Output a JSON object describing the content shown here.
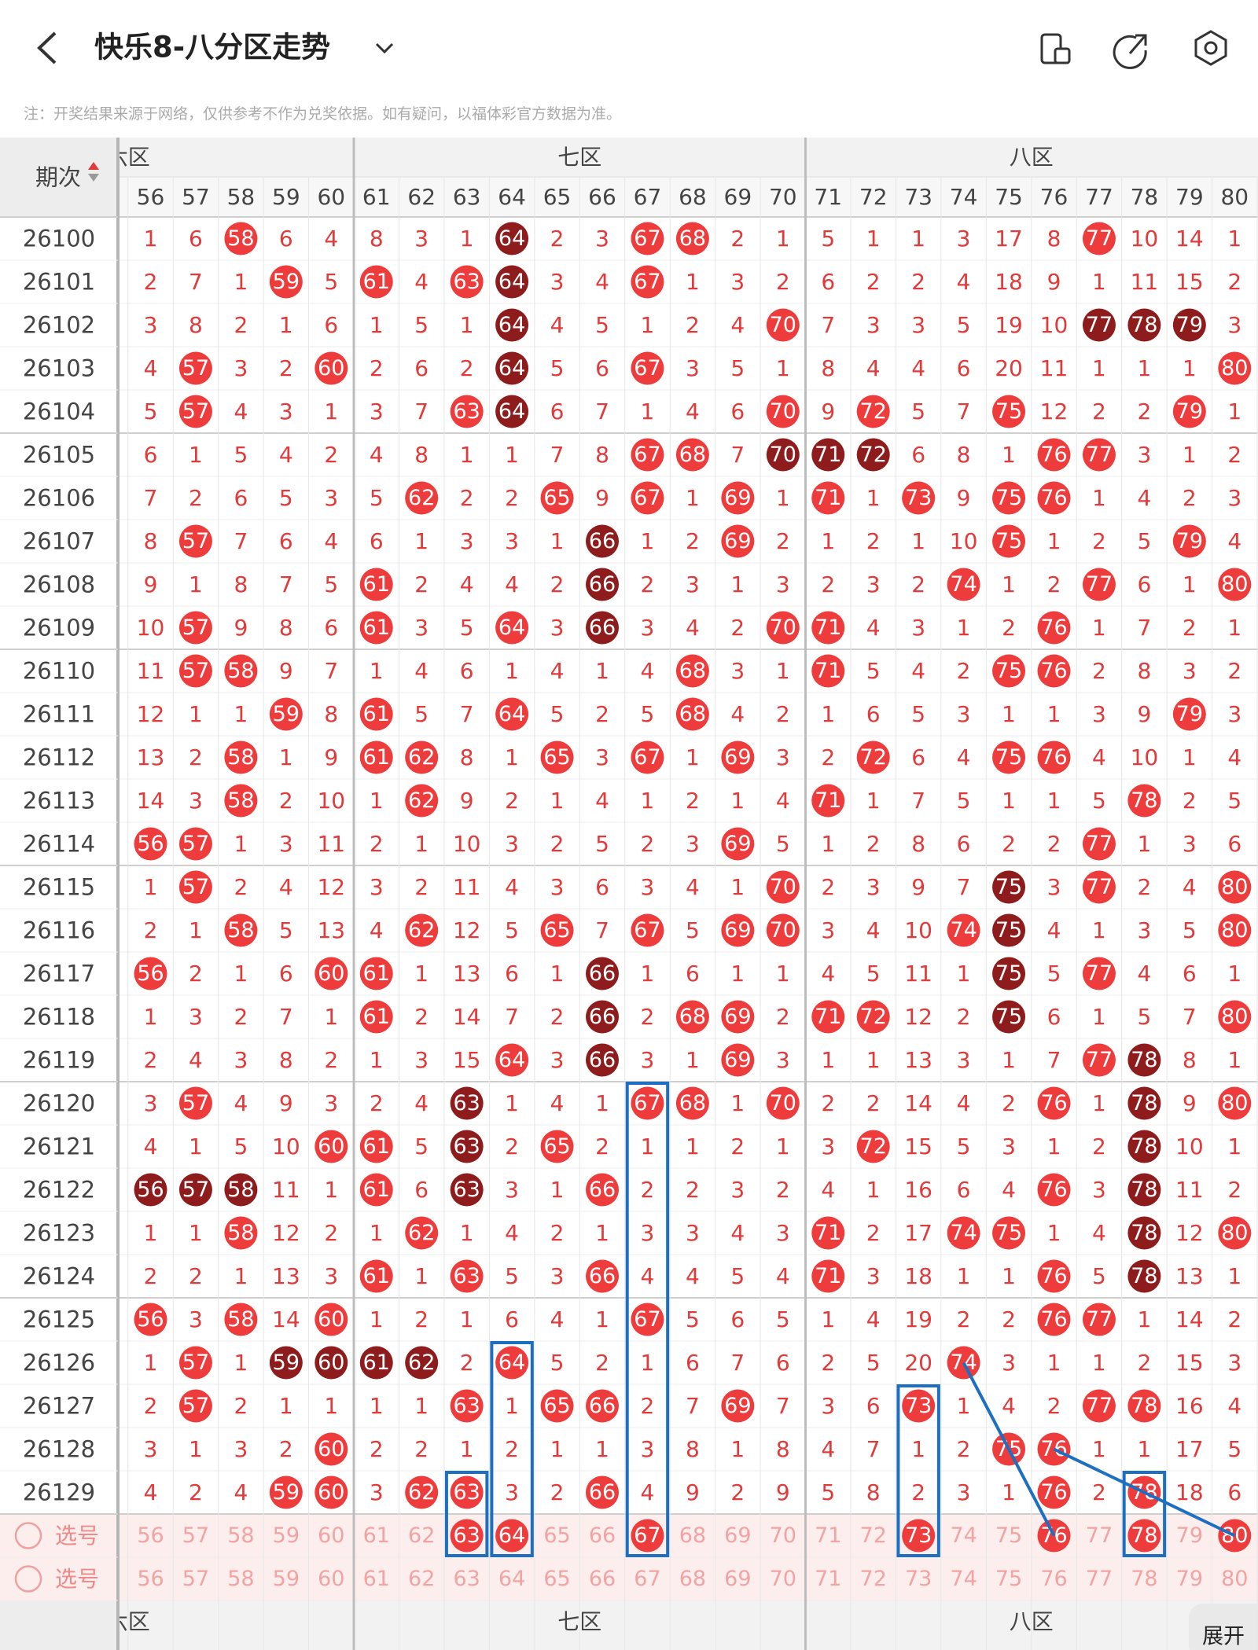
{
  "header": {
    "title": "快乐8-八分区走势",
    "note": "注：开奖结果来源于网络，仅供参考不作为兑奖依据。如有疑问，以福体彩官方数据为准。"
  },
  "table": {
    "period_header": "期次",
    "zones": [
      "六区",
      "七区",
      "八区"
    ],
    "columns": [
      56,
      57,
      58,
      59,
      60,
      61,
      62,
      63,
      64,
      65,
      66,
      67,
      68,
      69,
      70,
      71,
      72,
      73,
      74,
      75,
      76,
      77,
      78,
      79,
      80
    ],
    "rows": [
      {
        "period": "26100",
        "cells": [
          1,
          6,
          58,
          6,
          4,
          8,
          3,
          1,
          64,
          2,
          3,
          67,
          68,
          2,
          1,
          5,
          1,
          1,
          3,
          17,
          8,
          77,
          10,
          14,
          1
        ],
        "dark": [
          64
        ]
      },
      {
        "period": "26101",
        "cells": [
          2,
          7,
          1,
          59,
          5,
          61,
          4,
          63,
          64,
          3,
          4,
          67,
          1,
          3,
          2,
          6,
          2,
          2,
          4,
          18,
          9,
          1,
          11,
          15,
          2
        ],
        "dark": [
          64
        ]
      },
      {
        "period": "26102",
        "cells": [
          3,
          8,
          2,
          1,
          6,
          1,
          5,
          1,
          64,
          4,
          5,
          1,
          2,
          4,
          70,
          7,
          3,
          3,
          5,
          19,
          10,
          77,
          78,
          79,
          3
        ],
        "dark": [
          64,
          77,
          78,
          79
        ]
      },
      {
        "period": "26103",
        "cells": [
          4,
          57,
          3,
          2,
          60,
          2,
          6,
          2,
          64,
          5,
          6,
          67,
          3,
          5,
          1,
          8,
          4,
          4,
          6,
          20,
          11,
          1,
          1,
          1,
          80
        ],
        "dark": [
          64
        ]
      },
      {
        "period": "26104",
        "cells": [
          5,
          57,
          4,
          3,
          1,
          3,
          7,
          63,
          64,
          6,
          7,
          1,
          4,
          6,
          70,
          9,
          72,
          5,
          7,
          75,
          12,
          2,
          2,
          79,
          1
        ],
        "dark": [
          64
        ]
      },
      {
        "period": "26105",
        "cells": [
          6,
          1,
          5,
          4,
          2,
          4,
          8,
          1,
          1,
          7,
          8,
          67,
          68,
          7,
          70,
          71,
          72,
          6,
          8,
          1,
          76,
          77,
          3,
          1,
          2
        ],
        "dark": [
          70,
          71,
          72
        ]
      },
      {
        "period": "26106",
        "cells": [
          7,
          2,
          6,
          5,
          3,
          5,
          62,
          2,
          2,
          65,
          9,
          67,
          1,
          69,
          1,
          71,
          1,
          73,
          9,
          75,
          76,
          1,
          4,
          2,
          3
        ]
      },
      {
        "period": "26107",
        "cells": [
          8,
          57,
          7,
          6,
          4,
          6,
          1,
          3,
          3,
          1,
          66,
          1,
          2,
          69,
          2,
          1,
          2,
          1,
          10,
          75,
          1,
          2,
          5,
          79,
          4
        ],
        "dark": [
          66
        ]
      },
      {
        "period": "26108",
        "cells": [
          9,
          1,
          8,
          7,
          5,
          61,
          2,
          4,
          4,
          2,
          66,
          2,
          3,
          1,
          3,
          2,
          3,
          2,
          74,
          1,
          2,
          77,
          6,
          1,
          80
        ],
        "dark": [
          66
        ]
      },
      {
        "period": "26109",
        "cells": [
          10,
          57,
          9,
          8,
          6,
          61,
          3,
          5,
          64,
          3,
          66,
          3,
          4,
          2,
          70,
          71,
          4,
          3,
          1,
          2,
          76,
          1,
          7,
          2,
          1
        ],
        "dark": [
          66
        ]
      },
      {
        "period": "26110",
        "cells": [
          11,
          57,
          58,
          9,
          7,
          1,
          4,
          6,
          1,
          4,
          1,
          4,
          68,
          3,
          1,
          71,
          5,
          4,
          2,
          75,
          76,
          2,
          8,
          3,
          2
        ]
      },
      {
        "period": "26111",
        "cells": [
          12,
          1,
          1,
          59,
          8,
          61,
          5,
          7,
          64,
          5,
          2,
          5,
          68,
          4,
          2,
          1,
          6,
          5,
          3,
          1,
          1,
          3,
          9,
          79,
          3
        ]
      },
      {
        "period": "26112",
        "cells": [
          13,
          2,
          58,
          1,
          9,
          61,
          62,
          8,
          1,
          65,
          3,
          67,
          1,
          69,
          3,
          2,
          72,
          6,
          4,
          75,
          76,
          4,
          10,
          1,
          4
        ]
      },
      {
        "period": "26113",
        "cells": [
          14,
          3,
          58,
          2,
          10,
          1,
          62,
          9,
          2,
          1,
          4,
          1,
          2,
          1,
          4,
          71,
          1,
          7,
          5,
          1,
          1,
          5,
          78,
          2,
          5
        ]
      },
      {
        "period": "26114",
        "cells": [
          56,
          57,
          1,
          3,
          11,
          2,
          1,
          10,
          3,
          2,
          5,
          2,
          3,
          69,
          5,
          1,
          2,
          8,
          6,
          2,
          2,
          77,
          1,
          3,
          6
        ]
      },
      {
        "period": "26115",
        "cells": [
          1,
          57,
          2,
          4,
          12,
          3,
          2,
          11,
          4,
          3,
          6,
          3,
          4,
          1,
          70,
          2,
          3,
          9,
          7,
          75,
          3,
          77,
          2,
          4,
          80
        ],
        "dark": [
          75
        ]
      },
      {
        "period": "26116",
        "cells": [
          2,
          1,
          58,
          5,
          13,
          4,
          62,
          12,
          5,
          65,
          7,
          67,
          5,
          69,
          70,
          3,
          4,
          10,
          74,
          75,
          4,
          1,
          3,
          5,
          80
        ],
        "dark": [
          75
        ]
      },
      {
        "period": "26117",
        "cells": [
          56,
          2,
          1,
          6,
          60,
          61,
          1,
          13,
          6,
          1,
          66,
          1,
          6,
          1,
          1,
          4,
          5,
          11,
          1,
          75,
          5,
          77,
          4,
          6,
          1
        ],
        "dark": [
          66,
          75
        ]
      },
      {
        "period": "26118",
        "cells": [
          1,
          3,
          2,
          7,
          1,
          61,
          2,
          14,
          7,
          2,
          66,
          2,
          68,
          69,
          2,
          71,
          72,
          12,
          2,
          75,
          6,
          1,
          5,
          7,
          80
        ],
        "dark": [
          66,
          75
        ]
      },
      {
        "period": "26119",
        "cells": [
          2,
          4,
          3,
          8,
          2,
          1,
          3,
          15,
          64,
          3,
          66,
          3,
          1,
          69,
          3,
          1,
          1,
          13,
          3,
          1,
          7,
          77,
          78,
          8,
          1
        ],
        "dark": [
          66,
          78
        ]
      },
      {
        "period": "26120",
        "cells": [
          3,
          57,
          4,
          9,
          3,
          2,
          4,
          63,
          1,
          4,
          1,
          67,
          68,
          1,
          70,
          2,
          2,
          14,
          4,
          2,
          76,
          1,
          78,
          9,
          80
        ],
        "dark": [
          63,
          78
        ]
      },
      {
        "period": "26121",
        "cells": [
          4,
          1,
          5,
          10,
          60,
          61,
          5,
          63,
          2,
          65,
          2,
          1,
          1,
          2,
          1,
          3,
          72,
          15,
          5,
          3,
          1,
          2,
          78,
          10,
          1
        ],
        "dark": [
          63,
          78
        ]
      },
      {
        "period": "26122",
        "cells": [
          56,
          57,
          58,
          11,
          1,
          61,
          6,
          63,
          3,
          1,
          66,
          2,
          2,
          3,
          2,
          4,
          1,
          16,
          6,
          4,
          76,
          3,
          78,
          11,
          2
        ],
        "dark": [
          56,
          57,
          58,
          63,
          78
        ]
      },
      {
        "period": "26123",
        "cells": [
          1,
          1,
          58,
          12,
          2,
          1,
          62,
          1,
          4,
          2,
          1,
          3,
          3,
          4,
          3,
          71,
          2,
          17,
          74,
          75,
          1,
          4,
          78,
          12,
          80
        ],
        "dark": [
          78
        ]
      },
      {
        "period": "26124",
        "cells": [
          2,
          2,
          1,
          13,
          3,
          61,
          1,
          63,
          5,
          3,
          66,
          4,
          4,
          5,
          4,
          71,
          3,
          18,
          1,
          1,
          76,
          5,
          78,
          13,
          1
        ],
        "dark": [
          78
        ]
      },
      {
        "period": "26125",
        "cells": [
          56,
          3,
          58,
          14,
          60,
          1,
          2,
          1,
          6,
          4,
          1,
          67,
          5,
          6,
          5,
          1,
          4,
          19,
          2,
          2,
          76,
          77,
          1,
          14,
          2
        ]
      },
      {
        "period": "26126",
        "cells": [
          1,
          57,
          1,
          59,
          60,
          61,
          62,
          2,
          64,
          5,
          2,
          1,
          6,
          7,
          6,
          2,
          5,
          20,
          74,
          3,
          1,
          1,
          2,
          15,
          3
        ],
        "dark": [
          59,
          60,
          61,
          62
        ]
      },
      {
        "period": "26127",
        "cells": [
          2,
          57,
          2,
          1,
          1,
          1,
          1,
          63,
          1,
          65,
          66,
          2,
          7,
          69,
          7,
          3,
          6,
          73,
          1,
          4,
          2,
          77,
          78,
          16,
          4
        ]
      },
      {
        "period": "26128",
        "cells": [
          3,
          1,
          3,
          2,
          60,
          2,
          2,
          1,
          2,
          1,
          1,
          3,
          8,
          1,
          8,
          4,
          7,
          1,
          2,
          75,
          76,
          1,
          1,
          17,
          5
        ]
      },
      {
        "period": "26129",
        "cells": [
          4,
          2,
          4,
          59,
          60,
          3,
          62,
          63,
          3,
          2,
          66,
          4,
          9,
          2,
          9,
          5,
          8,
          2,
          3,
          1,
          76,
          2,
          78,
          18,
          6
        ]
      }
    ],
    "select_rows": [
      {
        "label": "选号",
        "picked": [
          63,
          64,
          67,
          73,
          76,
          78,
          80
        ]
      },
      {
        "label": "选号"
      }
    ]
  },
  "expand_button": "展开"
}
